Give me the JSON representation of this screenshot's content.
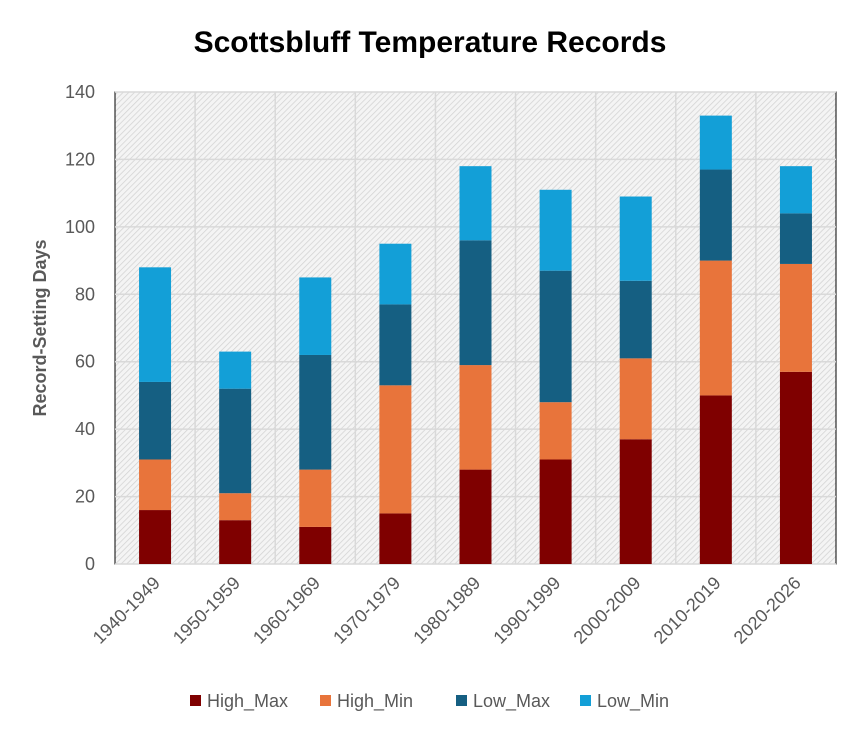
{
  "chart_data": {
    "type": "bar",
    "stacked": true,
    "title": "Scottsbluff Temperature Records",
    "xlabel": "",
    "ylabel": "Record-Setting Days",
    "ylim": [
      0,
      140
    ],
    "yticks": [
      0,
      20,
      40,
      60,
      80,
      100,
      120,
      140
    ],
    "grid": true,
    "legend_position": "bottom",
    "categories": [
      "1940-1949",
      "1950-1959",
      "1960-1969",
      "1970-1979",
      "1980-1989",
      "1990-1999",
      "2000-2009",
      "2010-2019",
      "2020-2026"
    ],
    "series": [
      {
        "name": "High_Max",
        "color": "#7f0000",
        "values": [
          16,
          13,
          11,
          15,
          28,
          31,
          37,
          50,
          57
        ]
      },
      {
        "name": "High_Min",
        "color": "#e8743b",
        "values": [
          15,
          8,
          17,
          38,
          31,
          17,
          24,
          40,
          32
        ]
      },
      {
        "name": "Low_Max",
        "color": "#155f82",
        "values": [
          23,
          31,
          34,
          24,
          37,
          39,
          23,
          27,
          15
        ]
      },
      {
        "name": "Low_Min",
        "color": "#139fd7",
        "values": [
          34,
          11,
          23,
          18,
          22,
          24,
          25,
          16,
          14
        ]
      }
    ]
  }
}
